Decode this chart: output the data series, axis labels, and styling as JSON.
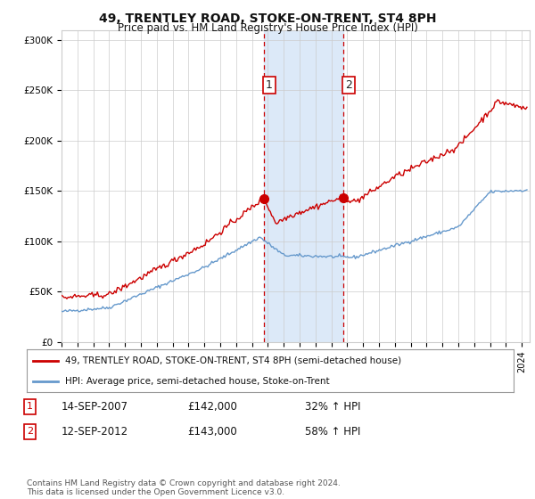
{
  "title": "49, TRENTLEY ROAD, STOKE-ON-TRENT, ST4 8PH",
  "subtitle": "Price paid vs. HM Land Registry's House Price Index (HPI)",
  "ylim": [
    0,
    310000
  ],
  "yticks": [
    0,
    50000,
    100000,
    150000,
    200000,
    250000,
    300000
  ],
  "legend_line1": "49, TRENTLEY ROAD, STOKE-ON-TRENT, ST4 8PH (semi-detached house)",
  "legend_line2": "HPI: Average price, semi-detached house, Stoke-on-Trent",
  "sale1_date": "14-SEP-2007",
  "sale1_price": "£142,000",
  "sale1_hpi": "32% ↑ HPI",
  "sale2_date": "12-SEP-2012",
  "sale2_price": "£143,000",
  "sale2_hpi": "58% ↑ HPI",
  "footer": "Contains HM Land Registry data © Crown copyright and database right 2024.\nThis data is licensed under the Open Government Licence v3.0.",
  "shaded_color": "#dce9f8",
  "line1_color": "#cc0000",
  "line2_color": "#6699cc",
  "vline_color": "#cc0000",
  "background_color": "#ffffff",
  "grid_color": "#cccccc",
  "sale1_t": 2007.75,
  "sale2_t": 2012.75,
  "sale1_price_val": 142000,
  "sale2_price_val": 143000
}
